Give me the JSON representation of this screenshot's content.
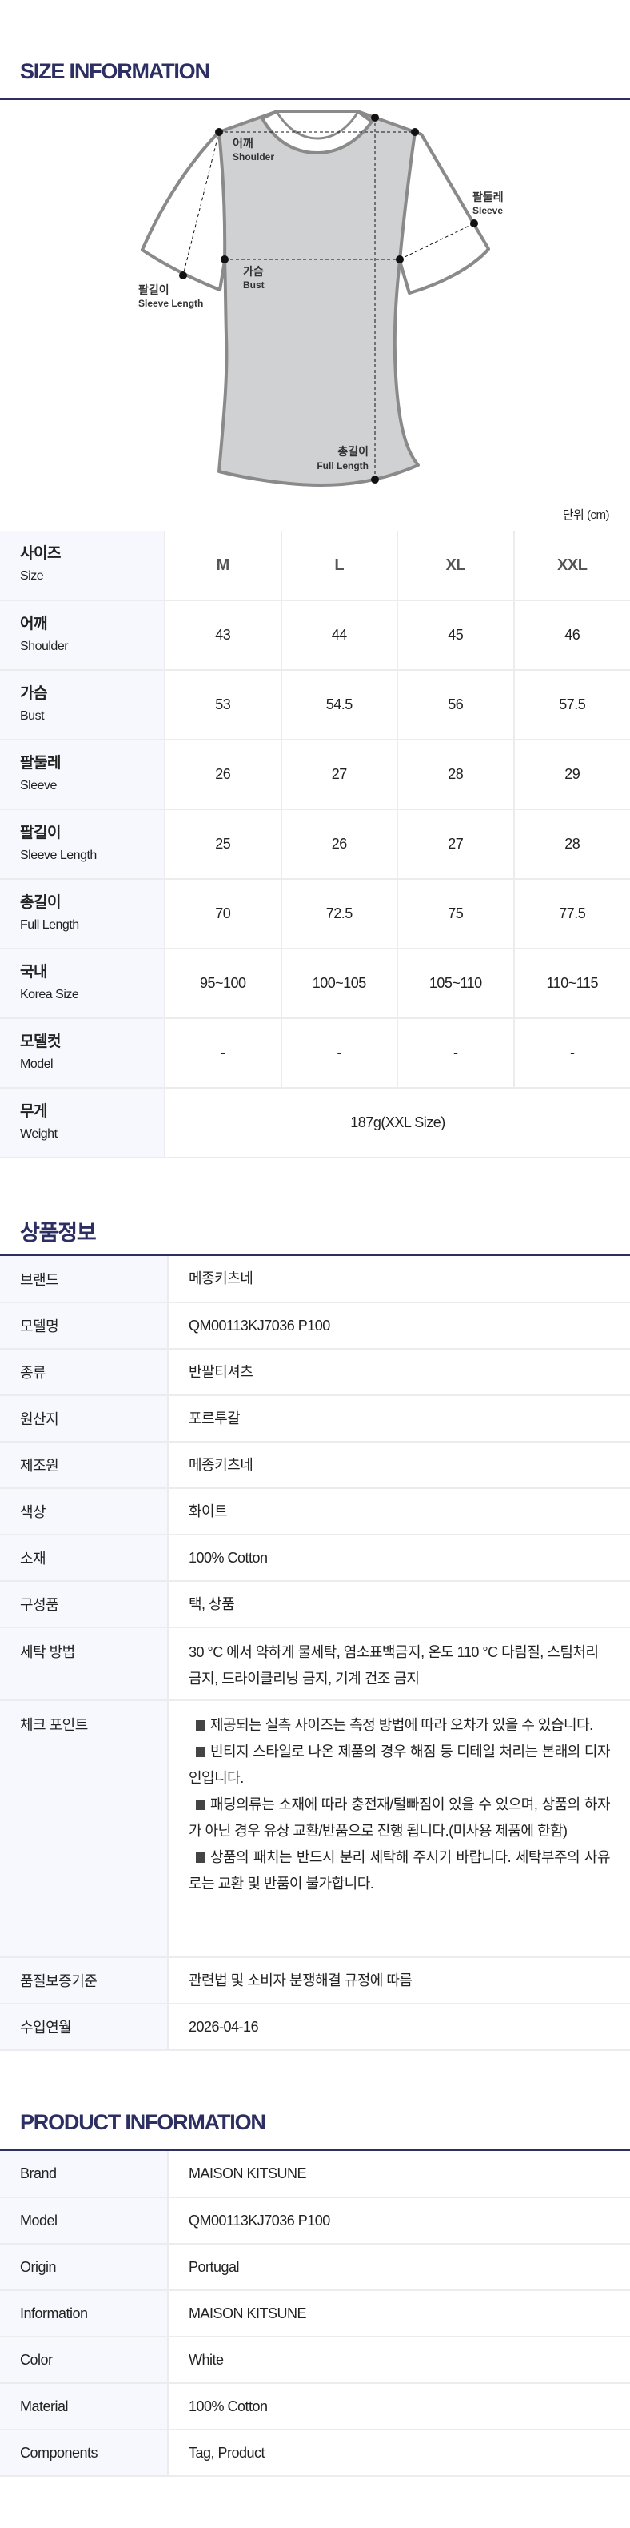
{
  "size_section": {
    "title": "SIZE INFORMATION",
    "unit": "단위 (cm)",
    "diagram_labels": {
      "shoulder_ko": "어깨",
      "shoulder_en": "Shoulder",
      "sleeve_ko": "팔둘레",
      "sleeve_en": "Sleeve",
      "bust_ko": "가슴",
      "bust_en": "Bust",
      "sleeve_length_ko": "팔길이",
      "sleeve_length_en": "Sleeve Length",
      "full_length_ko": "총길이",
      "full_length_en": "Full Length"
    },
    "header": {
      "ko": "사이즈",
      "en": "Size",
      "sizes": [
        "M",
        "L",
        "XL",
        "XXL"
      ]
    },
    "rows": [
      {
        "ko": "어깨",
        "en": "Shoulder",
        "values": [
          "43",
          "44",
          "45",
          "46"
        ]
      },
      {
        "ko": "가슴",
        "en": "Bust",
        "values": [
          "53",
          "54.5",
          "56",
          "57.5"
        ]
      },
      {
        "ko": "팔둘레",
        "en": "Sleeve",
        "values": [
          "26",
          "27",
          "28",
          "29"
        ]
      },
      {
        "ko": "팔길이",
        "en": "Sleeve Length",
        "values": [
          "25",
          "26",
          "27",
          "28"
        ]
      },
      {
        "ko": "총길이",
        "en": "Full Length",
        "values": [
          "70",
          "72.5",
          "75",
          "77.5"
        ]
      },
      {
        "ko": "국내",
        "en": "Korea Size",
        "values": [
          "95~100",
          "100~105",
          "105~110",
          "110~115"
        ]
      },
      {
        "ko": "모델컷",
        "en": "Model",
        "values": [
          "-",
          "-",
          "-",
          "-"
        ]
      }
    ],
    "weight": {
      "ko": "무게",
      "en": "Weight",
      "value": "187g(XXL Size)"
    }
  },
  "kr_section": {
    "title": "상품정보",
    "rows": [
      {
        "label": "브랜드",
        "value": "메종키츠네"
      },
      {
        "label": "모델명",
        "value": "QM00113KJ7036 P100"
      },
      {
        "label": "종류",
        "value": "반팔티셔츠"
      },
      {
        "label": "원산지",
        "value": "포르투갈"
      },
      {
        "label": "제조원",
        "value": "메종키츠네"
      },
      {
        "label": "색상",
        "value": "화이트"
      },
      {
        "label": "소재",
        "value": "100% Cotton"
      },
      {
        "label": "구성품",
        "value": "택, 상품"
      },
      {
        "label": "세탁 방법",
        "value": "30 °C 에서 약하게 물세탁, 염소표백금지, 온도 110 °C 다림질, 스팀처리 금지, 드라이클리닝 금지, 기계 건조 금지"
      }
    ],
    "check_point": {
      "label": "체크 포인트",
      "items": [
        "제공되는 실측 사이즈는 측정 방법에 따라 오차가 있을 수 있습니다.",
        "빈티지 스타일로 나온 제품의 경우 해짐 등 디테일 처리는 본래의 디자인입니다.",
        "패딩의류는 소재에 따라 충전재/털빠짐이 있을 수 있으며, 상품의 하자가 아닌 경우 유상 교환/반품으로 진행 됩니다.(미사용 제품에 한함)",
        "상품의 패치는 반드시 분리 세탁해 주시기 바랍니다. 세탁부주의 사유로는 교환 및 반품이 불가합니다."
      ]
    },
    "rows_after": [
      {
        "label": "품질보증기준",
        "value": "관련법 및 소비자 분쟁해결 규정에 따름"
      },
      {
        "label": "수입연월",
        "value": "2026-04-16"
      }
    ]
  },
  "en_section": {
    "title": "PRODUCT INFORMATION",
    "rows": [
      {
        "label": "Brand",
        "value": "MAISON KITSUNE"
      },
      {
        "label": "Model",
        "value": "QM00113KJ7036 P100"
      },
      {
        "label": "Origin",
        "value": "Portugal"
      },
      {
        "label": "Information",
        "value": "MAISON KITSUNE"
      },
      {
        "label": "Color",
        "value": "White"
      },
      {
        "label": "Material",
        "value": "100% Cotton"
      },
      {
        "label": "Components",
        "value": "Tag, Product"
      }
    ]
  },
  "colors": {
    "accent": "#2d2f63",
    "label_bg": "#f7f8fd",
    "garment_fill": "#d0d1d3",
    "garment_stroke": "#8a8a8a"
  }
}
